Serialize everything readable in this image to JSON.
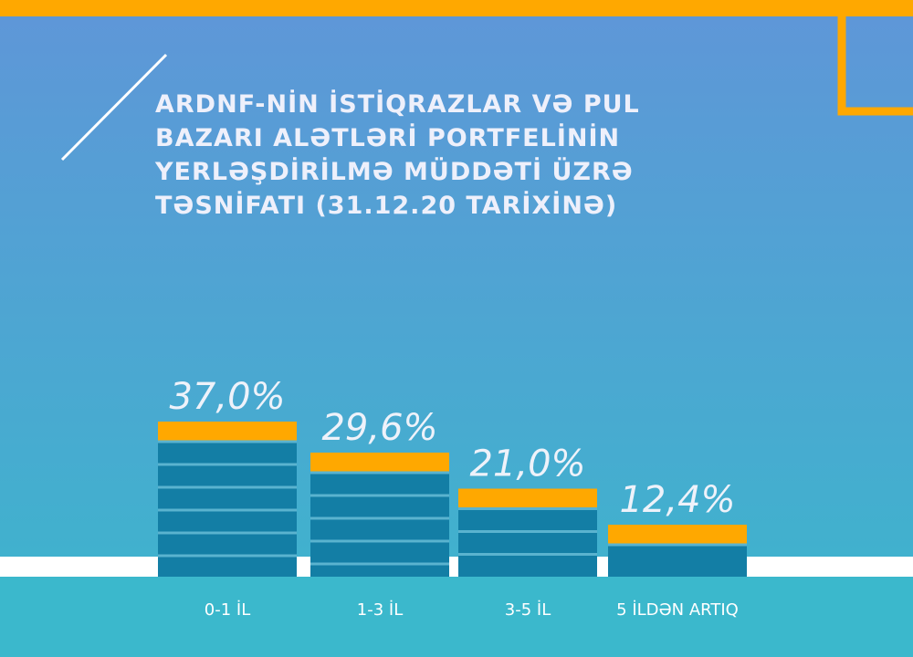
{
  "chart_data": {
    "type": "bar",
    "title": "ARDNF-NİN İSTİQRAZLAR VƏ PUL BAZARI ALƏTLƏRİ PORTFELİNİN YERLƏŞDİRİLMƏ MÜDDƏTİ ÜZRƏ TƏSNİFATI (31.12.20 TARİXİNƏ)",
    "categories": [
      "0-1 İL",
      "1-3 İL",
      "3-5 İL",
      "5 İLDƏN ARTIQ"
    ],
    "values": [
      37.0,
      29.6,
      21.0,
      12.4
    ],
    "value_labels": [
      "37,0%",
      "29,6%",
      "21,0%",
      "12,4%"
    ],
    "color": "#137ea5"
  }
}
